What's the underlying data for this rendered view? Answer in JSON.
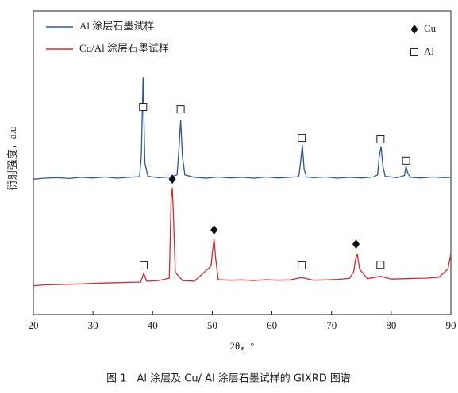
{
  "chart_data": {
    "type": "line",
    "caption": "图 1　Al 涂层及 Cu/ Al 涂层石墨试样的 GIXRD 图谱",
    "xlabel": "2θ，°",
    "ylabel": "衍射强度，a.u",
    "xlim": [
      20,
      90
    ],
    "xticks": [
      20,
      30,
      40,
      50,
      60,
      70,
      80,
      90
    ],
    "ylim": [
      0,
      100
    ],
    "series": [
      {
        "name": "Al 涂层石墨试样",
        "color": "#2a56a8",
        "x": [
          20,
          22,
          24,
          26,
          28,
          30,
          32,
          34,
          36,
          37.8,
          38.1,
          38.4,
          38.7,
          39.2,
          41,
          43,
          44.1,
          44.4,
          44.7,
          45,
          45.4,
          47,
          49,
          51,
          53,
          55,
          57,
          59,
          61,
          63,
          64.5,
          64.8,
          65.1,
          65.4,
          65.8,
          67,
          69,
          71,
          73,
          75,
          77,
          77.7,
          78,
          78.3,
          78.6,
          79,
          81,
          82.2,
          82.5,
          82.8,
          83.2,
          85,
          87,
          89,
          90
        ],
        "values": [
          44.6,
          44.9,
          45.1,
          44.8,
          45.2,
          45.0,
          45.3,
          44.9,
          45.2,
          45.4,
          52,
          78.3,
          50,
          45.5,
          45.1,
          45.3,
          46,
          54,
          64,
          52,
          46,
          45.2,
          44.9,
          45.3,
          45.0,
          45.2,
          44.9,
          45.3,
          45.0,
          45.2,
          45.4,
          50,
          55.9,
          48,
          45.3,
          45.1,
          45.3,
          44.9,
          45.2,
          45.0,
          45.3,
          46,
          52,
          55.4,
          49,
          45.5,
          45.1,
          45.8,
          48.8,
          46.5,
          45.2,
          45.0,
          45.3,
          45.1,
          45.2
        ]
      },
      {
        "name": "Cu/Al 涂层石墨试样",
        "color": "#e0262b",
        "x": [
          20,
          22,
          24,
          26,
          28,
          30,
          32,
          34,
          36,
          38,
          38.5,
          39,
          41,
          42.8,
          43.1,
          43.3,
          43.5,
          43.8,
          45,
          47,
          49.8,
          50.1,
          50.3,
          50.6,
          51,
          53,
          55,
          57,
          59,
          61,
          63,
          65,
          67,
          69,
          71,
          73,
          73.7,
          74,
          74.3,
          74.7,
          76,
          78.2,
          80,
          82,
          84,
          86,
          88,
          89.5,
          90
        ],
        "values": [
          9.5,
          9.8,
          9.9,
          10.0,
          10.1,
          10.3,
          10.4,
          10.5,
          10.6,
          10.7,
          13.6,
          11,
          11.2,
          12,
          38,
          41.8,
          32,
          14,
          11.2,
          11.0,
          16,
          22,
          24.8,
          18,
          11.5,
          11.3,
          11.4,
          11.2,
          11.5,
          11.3,
          11.4,
          12.2,
          11.3,
          11.4,
          11.6,
          11.9,
          14,
          18,
          20.1,
          15,
          11.8,
          12.6,
          11.7,
          11.8,
          11.9,
          12.0,
          12.3,
          15,
          20
        ]
      }
    ],
    "markers": [
      {
        "label": "Cu",
        "symbol": "diamond",
        "x": [
          43.3,
          50.3,
          74.1
        ],
        "y": [
          44.6,
          27.9,
          23.2
        ]
      },
      {
        "label": "Al",
        "symbol": "square",
        "x": [
          38.4,
          44.7,
          65,
          78.2,
          82.5,
          38.5,
          65,
          78.2
        ],
        "y": [
          68.4,
          67.6,
          58.2,
          57.7,
          50.7,
          16.2,
          16.2,
          16.4
        ]
      }
    ]
  }
}
